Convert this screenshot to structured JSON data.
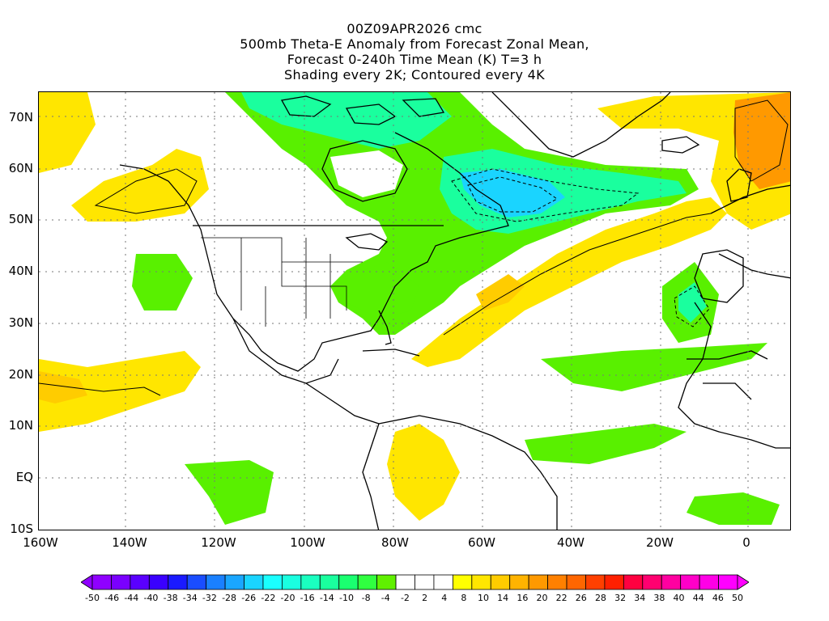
{
  "title": {
    "line1": "00Z09APR2026 cmc",
    "line2": "500mb Theta-E Anomaly from Forecast Zonal Mean,",
    "line3": "Forecast 0-240h Time Mean (K) T=3 h",
    "line4": "Shading every 2K; Contoured every 4K"
  },
  "map": {
    "lat_labels": [
      "70N",
      "60N",
      "50N",
      "40N",
      "30N",
      "20N",
      "10N",
      "EQ",
      "10S"
    ],
    "lon_labels": [
      "160W",
      "140W",
      "120W",
      "100W",
      "80W",
      "60W",
      "40W",
      "20W",
      "0"
    ],
    "grid": true
  },
  "colorbar": {
    "labels": [
      "-50",
      "-46",
      "-44",
      "-40",
      "-38",
      "-34",
      "-32",
      "-28",
      "-26",
      "-22",
      "-20",
      "-16",
      "-14",
      "-10",
      "-8",
      "-4",
      "-2",
      "2",
      "4",
      "8",
      "10",
      "14",
      "16",
      "20",
      "22",
      "26",
      "28",
      "32",
      "34",
      "38",
      "40",
      "44",
      "46",
      "50"
    ],
    "colors": [
      "#8f00ff",
      "#7a00ff",
      "#5a00ff",
      "#3a00ff",
      "#1a1aff",
      "#1a4dff",
      "#1a80ff",
      "#1aa6ff",
      "#1ad4ff",
      "#1affff",
      "#1affe0",
      "#1affc0",
      "#1aff9e",
      "#1aff70",
      "#30ff40",
      "#60f000",
      "#ffffff",
      "#ffffff",
      "#ffffff",
      "#ffff00",
      "#ffe600",
      "#ffcc00",
      "#ffb300",
      "#ff9900",
      "#ff8000",
      "#ff6600",
      "#ff4000",
      "#ff2000",
      "#ff0040",
      "#ff0070",
      "#ff00a0",
      "#ff00c8",
      "#ff00e6",
      "#ff00ff"
    ]
  },
  "colors": {
    "warm_yellow": "#ffe600",
    "warm_gold": "#ffcc00",
    "warm_orange": "#ff9900",
    "cool_green": "#59f000",
    "cool_mint": "#1aff9e",
    "cool_cyan": "#1ad4ff"
  }
}
